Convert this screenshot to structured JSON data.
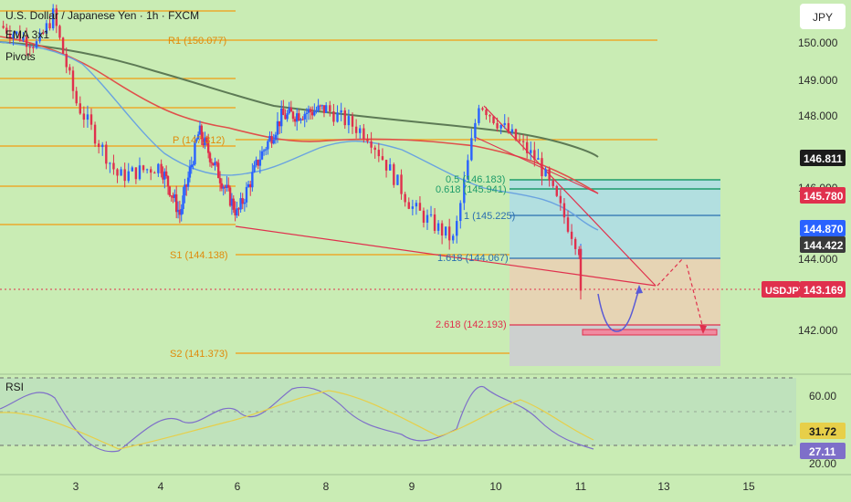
{
  "header": {
    "title": "U.S. Dollar / Japanese Yen · 1h · FXCM",
    "indicator_1": "EMA 3x1",
    "indicator_2": "Pivots",
    "currency": "JPY"
  },
  "colors": {
    "background": "#c9ecb4",
    "candle_up": "#2962ff",
    "candle_down": "#e0304d",
    "pivot_line": "#f39c12",
    "ma_dark": "#5d7a55",
    "ma_red": "#e0504a",
    "ma_blue": "#6aa3e0",
    "rsi_line": "#7e6fc9",
    "rsi_ma": "#e7cf49",
    "arrow": "#5a5ad6",
    "arrow_red": "#e0304d"
  },
  "price_axis": {
    "labels": [
      "150.000",
      "149.000",
      "148.000",
      "146.000",
      "144.000",
      "142.000"
    ],
    "badges": [
      {
        "value": "146.811",
        "bg": "#1b1b1b",
        "fg": "#ffffff"
      },
      {
        "value": "145.780",
        "bg": "#e0304d",
        "fg": "#ffffff"
      },
      {
        "value": "144.870",
        "bg": "#2962ff",
        "fg": "#ffffff"
      },
      {
        "value": "144.422",
        "bg": "#3a3a3a",
        "fg": "#ffffff"
      }
    ],
    "current_symbol": "USDJPY",
    "current_price": "143.169"
  },
  "time_axis": {
    "labels": [
      "3",
      "4",
      "6",
      "8",
      "9",
      "10",
      "11",
      "13",
      "15"
    ]
  },
  "pivots": [
    {
      "label": "R1 (150.077)"
    },
    {
      "label": "P (147.312)"
    },
    {
      "label": "S1 (144.138)"
    },
    {
      "label": "S2 (141.373)"
    }
  ],
  "fib_labels": [
    {
      "label": "0.5 (146.183)"
    },
    {
      "label": "0.618 (145.941)"
    },
    {
      "label": "1 (145.225)"
    },
    {
      "label": "1.618 (144.067)"
    },
    {
      "label": "2.618 (142.193)"
    }
  ],
  "rsi_panel": {
    "title": "RSI",
    "axis_labels": [
      "60.00",
      "20.00"
    ],
    "badges": [
      {
        "value": "31.72",
        "bg": "#e7cf49",
        "fg": "#1b1b1b"
      },
      {
        "value": "27.11",
        "bg": "#7e6fc9",
        "fg": "#ffffff"
      }
    ]
  },
  "chart_data": {
    "type": "candlestick",
    "symbol": "USDJPY",
    "timeframe": "1h",
    "y_range": [
      141.0,
      150.4
    ],
    "x_day_ticks": [
      "3",
      "4",
      "6",
      "8",
      "9",
      "10",
      "11",
      "13",
      "15"
    ],
    "close_approx": [
      {
        "x": "2",
        "y": 150.0
      },
      {
        "x": "2.5",
        "y": 149.5
      },
      {
        "x": "2.7",
        "y": 150.3
      },
      {
        "x": "3",
        "y": 148.0
      },
      {
        "x": "3.5",
        "y": 146.0
      },
      {
        "x": "4",
        "y": 146.3
      },
      {
        "x": "4.5",
        "y": 145.0
      },
      {
        "x": "5",
        "y": 147.2
      },
      {
        "x": "6",
        "y": 145.0
      },
      {
        "x": "6.5",
        "y": 146.5
      },
      {
        "x": "7",
        "y": 147.6
      },
      {
        "x": "8",
        "y": 147.8
      },
      {
        "x": "8.5",
        "y": 147.1
      },
      {
        "x": "9",
        "y": 145.2
      },
      {
        "x": "9.5",
        "y": 144.3
      },
      {
        "x": "9.8",
        "y": 148.0
      },
      {
        "x": "10",
        "y": 147.5
      },
      {
        "x": "10.5",
        "y": 146.4
      },
      {
        "x": "11",
        "y": 144.0
      },
      {
        "x": "11.2",
        "y": 143.2
      }
    ],
    "pivots": {
      "R1": 150.077,
      "P": 147.312,
      "S1": 144.138,
      "S2": 141.373
    },
    "fibonacci": [
      {
        "level": 0.5,
        "price": 146.183
      },
      {
        "level": 0.618,
        "price": 145.941
      },
      {
        "level": 1,
        "price": 145.225
      },
      {
        "level": 1.618,
        "price": 144.067
      },
      {
        "level": 2.618,
        "price": 142.193
      }
    ],
    "current_price": 143.169,
    "rsi": {
      "range": [
        20,
        60
      ],
      "value": 27.11,
      "ma": 31.72
    }
  }
}
